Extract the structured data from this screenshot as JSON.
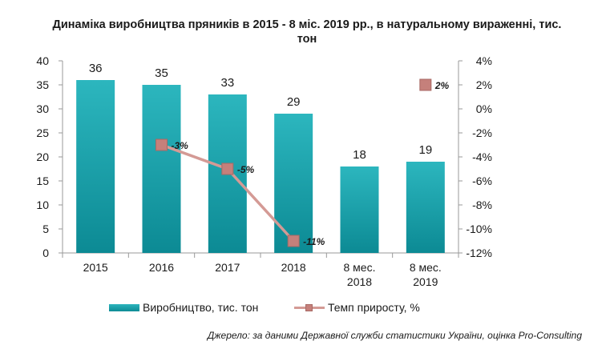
{
  "title_line1": "Динаміка виробництва пряників в 2015 - 8 міс. 2019 рр., в натуральному вираженні, тис.",
  "title_line2": "тон",
  "source": "Джерело: за даними Державної служби статистики України, оцінка Pro-Consulting",
  "colors": {
    "bar": "#17a2ac",
    "line": "#d49a95",
    "marker": "#c5807b",
    "axis": "#999999",
    "text": "#1a1a1a"
  },
  "chart_data": {
    "type": "bar+line",
    "categories": [
      [
        "2015"
      ],
      [
        "2016"
      ],
      [
        "2017"
      ],
      [
        "2018"
      ],
      [
        "8 мес.",
        "2018"
      ],
      [
        "8 мес.",
        "2019"
      ]
    ],
    "series": [
      {
        "name": "Виробництво,  тис. тон",
        "type": "bar",
        "axis": "left",
        "values": [
          36,
          35,
          33,
          29,
          18,
          19
        ],
        "labels": [
          "36",
          "35",
          "33",
          "29",
          "18",
          "19"
        ]
      },
      {
        "name": "Темп приросту, %",
        "type": "line",
        "axis": "right",
        "values": [
          null,
          -3,
          -5,
          -11,
          null,
          2
        ],
        "labels": [
          "",
          "-3%",
          "-5%",
          "-11%",
          "",
          "2%"
        ],
        "connected": [
          1,
          2,
          3
        ]
      }
    ],
    "y_left": {
      "min": 0,
      "max": 40,
      "step": 5,
      "ticks": [
        "0",
        "5",
        "10",
        "15",
        "20",
        "25",
        "30",
        "35",
        "40"
      ]
    },
    "y_right": {
      "min": -12,
      "max": 4,
      "step": 2,
      "ticks": [
        "-12%",
        "-10%",
        "-8%",
        "-6%",
        "-4%",
        "-2%",
        "0%",
        "2%",
        "4%"
      ]
    },
    "legend": "bottom",
    "grid": false
  }
}
